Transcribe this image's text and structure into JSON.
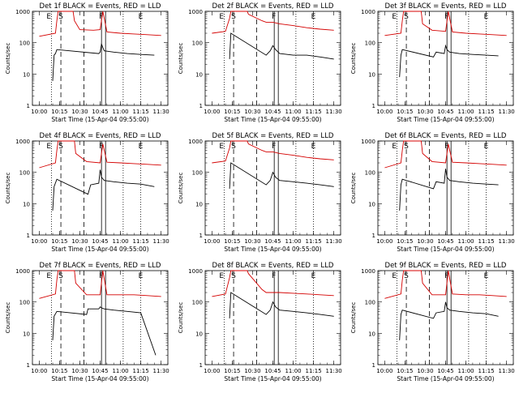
{
  "chart_data": [
    {
      "type": "line",
      "title": "Det 1f BLACK = Events, RED = LLD",
      "xlabel": "Start Time (15-Apr-04 09:55:00)",
      "ylabel": "Counts/sec",
      "x_ticks": [
        "10:00",
        "10:15",
        "10:30",
        "10:45",
        "11:00",
        "11:15",
        "11:30"
      ],
      "y_scale": "log",
      "ylim": [
        1,
        1000
      ],
      "y_ticks": [
        "1",
        "10",
        "100",
        "1000"
      ],
      "markers": [
        "E",
        "S",
        "F",
        "E"
      ],
      "series": [
        {
          "name": "RED",
          "color": "#d40000",
          "x": [
            "10:00",
            "10:12",
            "10:13",
            "10:14",
            "10:25",
            "10:26",
            "10:30",
            "10:40",
            "10:45",
            "10:47",
            "10:50",
            "11:00",
            "11:10",
            "11:20",
            "11:30"
          ],
          "y": [
            160,
            200,
            500,
            1000,
            1000,
            500,
            260,
            250,
            260,
            1000,
            220,
            200,
            190,
            180,
            170
          ]
        },
        {
          "name": "BLACK",
          "color": "#000000",
          "x": [
            "10:10",
            "10:11",
            "10:12",
            "10:13",
            "10:44",
            "10:45",
            "10:46",
            "10:47",
            "10:48",
            "10:55",
            "11:05",
            "11:15",
            "11:25"
          ],
          "y": [
            6,
            40,
            45,
            60,
            45,
            50,
            90,
            70,
            55,
            50,
            45,
            42,
            40
          ]
        }
      ]
    },
    {
      "type": "line",
      "title": "Det 2f BLACK = Events, RED = LLD",
      "xlabel": "Start Time (15-Apr-04 09:55:00)",
      "ylabel": "Counts/sec",
      "x_ticks": [
        "10:00",
        "10:15",
        "10:30",
        "10:45",
        "11:00",
        "11:15",
        "11:30"
      ],
      "y_scale": "log",
      "ylim": [
        1,
        1000
      ],
      "y_ticks": [
        "1",
        "10",
        "100",
        "1000"
      ],
      "markers": [
        "E",
        "S",
        "F",
        "E"
      ],
      "series": [
        {
          "name": "RED",
          "color": "#d40000",
          "x": [
            "10:00",
            "10:10",
            "10:13",
            "10:14",
            "10:26",
            "10:27",
            "10:37",
            "10:40",
            "10:45",
            "10:50",
            "11:00",
            "11:10",
            "11:20",
            "11:30"
          ],
          "y": [
            200,
            230,
            600,
            1000,
            1000,
            800,
            500,
            450,
            450,
            400,
            350,
            300,
            270,
            250
          ]
        },
        {
          "name": "BLACK",
          "color": "#000000",
          "x": [
            "10:13",
            "10:14",
            "10:40",
            "10:43",
            "10:45",
            "10:47",
            "10:50",
            "11:00",
            "11:10",
            "11:20",
            "11:30"
          ],
          "y": [
            30,
            200,
            40,
            55,
            80,
            60,
            45,
            40,
            40,
            35,
            30
          ]
        }
      ]
    },
    {
      "type": "line",
      "title": "Det 3f BLACK = Events, RED = LLD",
      "xlabel": "Start Time (15-Apr-04 09:55:00)",
      "ylabel": "Counts/sec",
      "x_ticks": [
        "10:00",
        "10:15",
        "10:30",
        "10:45",
        "11:00",
        "11:15",
        "11:30"
      ],
      "y_scale": "log",
      "ylim": [
        1,
        1000
      ],
      "y_ticks": [
        "1",
        "10",
        "100",
        "1000"
      ],
      "markers": [
        "E",
        "S",
        "F",
        "E"
      ],
      "series": [
        {
          "name": "RED",
          "color": "#d40000",
          "x": [
            "10:00",
            "10:12",
            "10:13",
            "10:14",
            "10:27",
            "10:28",
            "10:35",
            "10:45",
            "10:47",
            "10:50",
            "11:00",
            "11:10",
            "11:20",
            "11:30"
          ],
          "y": [
            170,
            200,
            500,
            1000,
            1000,
            400,
            250,
            230,
            1000,
            220,
            200,
            190,
            180,
            170
          ]
        },
        {
          "name": "BLACK",
          "color": "#000000",
          "x": [
            "10:11",
            "10:12",
            "10:13",
            "10:36",
            "10:38",
            "10:44",
            "10:45",
            "10:46",
            "10:48",
            "10:55",
            "11:05",
            "11:15",
            "11:24"
          ],
          "y": [
            8,
            40,
            60,
            35,
            50,
            45,
            80,
            60,
            50,
            45,
            42,
            40,
            38
          ]
        }
      ]
    },
    {
      "type": "line",
      "title": "Det 4f BLACK = Events, RED = LLD",
      "xlabel": "Start Time (15-Apr-04 09:55:00)",
      "ylabel": "Counts/sec",
      "x_ticks": [
        "10:00",
        "10:15",
        "10:30",
        "10:45",
        "11:00",
        "11:15",
        "11:30"
      ],
      "y_scale": "log",
      "ylim": [
        1,
        1000
      ],
      "y_ticks": [
        "1",
        "10",
        "100",
        "1000"
      ],
      "markers": [
        "E",
        "S",
        "F",
        "E"
      ],
      "series": [
        {
          "name": "RED",
          "color": "#d40000",
          "x": [
            "10:00",
            "10:12",
            "10:13",
            "10:14",
            "10:26",
            "10:27",
            "10:35",
            "10:45",
            "10:47",
            "10:50",
            "11:00",
            "11:10",
            "11:20",
            "11:30"
          ],
          "y": [
            140,
            200,
            500,
            1000,
            1000,
            400,
            220,
            200,
            800,
            210,
            200,
            190,
            180,
            170
          ]
        },
        {
          "name": "BLACK",
          "color": "#000000",
          "x": [
            "10:10",
            "10:11",
            "10:13",
            "10:36",
            "10:38",
            "10:44",
            "10:45",
            "10:46",
            "10:48",
            "10:55",
            "11:05",
            "11:15",
            "11:25"
          ],
          "y": [
            6,
            35,
            60,
            20,
            40,
            45,
            120,
            70,
            55,
            50,
            45,
            42,
            35
          ]
        }
      ]
    },
    {
      "type": "line",
      "title": "Det 5f BLACK = Events, RED = LLD",
      "xlabel": "Start Time (15-Apr-04 09:55:00)",
      "ylabel": "Counts/sec",
      "x_ticks": [
        "10:00",
        "10:15",
        "10:30",
        "10:45",
        "11:00",
        "11:15",
        "11:30"
      ],
      "y_scale": "log",
      "ylim": [
        1,
        1000
      ],
      "y_ticks": [
        "1",
        "10",
        "100",
        "1000"
      ],
      "markers": [
        "E",
        "S",
        "F",
        "E"
      ],
      "series": [
        {
          "name": "RED",
          "color": "#d40000",
          "x": [
            "10:00",
            "10:10",
            "10:13",
            "10:14",
            "10:26",
            "10:27",
            "10:37",
            "10:40",
            "10:45",
            "10:50",
            "11:00",
            "11:10",
            "11:20",
            "11:30"
          ],
          "y": [
            200,
            230,
            600,
            1000,
            1000,
            800,
            500,
            450,
            450,
            400,
            350,
            300,
            270,
            250
          ]
        },
        {
          "name": "BLACK",
          "color": "#000000",
          "x": [
            "10:13",
            "10:14",
            "10:40",
            "10:43",
            "10:45",
            "10:47",
            "10:50",
            "11:00",
            "11:10",
            "11:20",
            "11:30"
          ],
          "y": [
            30,
            200,
            40,
            55,
            100,
            70,
            55,
            50,
            45,
            40,
            35
          ]
        }
      ]
    },
    {
      "type": "line",
      "title": "Det 6f BLACK = Events, RED = LLD",
      "xlabel": "Start Time (15-Apr-04 09:55:00)",
      "ylabel": "Counts/sec",
      "x_ticks": [
        "10:00",
        "10:15",
        "10:30",
        "10:45",
        "11:00",
        "11:15",
        "11:30"
      ],
      "y_scale": "log",
      "ylim": [
        1,
        1000
      ],
      "y_ticks": [
        "1",
        "10",
        "100",
        "1000"
      ],
      "markers": [
        "E",
        "S",
        "F",
        "E"
      ],
      "series": [
        {
          "name": "RED",
          "color": "#d40000",
          "x": [
            "10:00",
            "10:12",
            "10:13",
            "10:14",
            "10:27",
            "10:28",
            "10:35",
            "10:45",
            "10:47",
            "10:50",
            "11:00",
            "11:10",
            "11:20",
            "11:30"
          ],
          "y": [
            140,
            200,
            500,
            1000,
            1000,
            400,
            220,
            200,
            800,
            210,
            200,
            190,
            180,
            170
          ]
        },
        {
          "name": "BLACK",
          "color": "#000000",
          "x": [
            "10:11",
            "10:12",
            "10:13",
            "10:36",
            "10:38",
            "10:44",
            "10:45",
            "10:46",
            "10:48",
            "10:55",
            "11:05",
            "11:15",
            "11:24"
          ],
          "y": [
            6,
            40,
            60,
            30,
            50,
            45,
            130,
            70,
            55,
            50,
            45,
            42,
            40
          ]
        }
      ]
    },
    {
      "type": "line",
      "title": "Det 7f BLACK = Events, RED = LLD",
      "xlabel": "Start Time (15-Apr-04 09:55:00)",
      "ylabel": "Counts/sec",
      "x_ticks": [
        "10:00",
        "10:15",
        "10:30",
        "10:45",
        "11:00",
        "11:15",
        "11:30"
      ],
      "y_scale": "log",
      "ylim": [
        1,
        1000
      ],
      "y_ticks": [
        "1",
        "10",
        "100",
        "1000"
      ],
      "markers": [
        "E",
        "S",
        "F",
        "E"
      ],
      "series": [
        {
          "name": "RED",
          "color": "#d40000",
          "x": [
            "10:00",
            "10:12",
            "10:13",
            "10:14",
            "10:26",
            "10:27",
            "10:35",
            "10:45",
            "10:47",
            "10:50",
            "11:00",
            "11:10",
            "11:20",
            "11:30"
          ],
          "y": [
            130,
            180,
            500,
            1000,
            1000,
            400,
            170,
            170,
            1000,
            170,
            170,
            170,
            160,
            150
          ]
        },
        {
          "name": "BLACK",
          "color": "#000000",
          "x": [
            "10:10",
            "10:11",
            "10:13",
            "10:35",
            "10:36",
            "10:44",
            "10:45",
            "10:46",
            "10:48",
            "10:55",
            "11:05",
            "11:15",
            "11:26"
          ],
          "y": [
            6,
            35,
            50,
            40,
            60,
            60,
            70,
            65,
            60,
            55,
            50,
            45,
            2
          ]
        }
      ]
    },
    {
      "type": "line",
      "title": "Det 8f BLACK = Events, RED = LLD",
      "xlabel": "Start Time (15-Apr-04 09:55:00)",
      "ylabel": "Counts/sec",
      "x_ticks": [
        "10:00",
        "10:15",
        "10:30",
        "10:45",
        "11:00",
        "11:15",
        "11:30"
      ],
      "y_scale": "log",
      "ylim": [
        1,
        1000
      ],
      "y_ticks": [
        "1",
        "10",
        "100",
        "1000"
      ],
      "markers": [
        "E",
        "S",
        "F",
        "E"
      ],
      "series": [
        {
          "name": "RED",
          "color": "#d40000",
          "x": [
            "10:00",
            "10:10",
            "10:13",
            "10:14",
            "10:26",
            "10:27",
            "10:37",
            "10:40",
            "10:45",
            "10:50",
            "11:00",
            "11:10",
            "11:20",
            "11:30"
          ],
          "y": [
            150,
            180,
            600,
            1000,
            1000,
            800,
            250,
            200,
            200,
            200,
            190,
            180,
            170,
            160
          ]
        },
        {
          "name": "BLACK",
          "color": "#000000",
          "x": [
            "10:13",
            "10:14",
            "10:40",
            "10:43",
            "10:45",
            "10:47",
            "10:50",
            "11:00",
            "11:10",
            "11:20",
            "11:30"
          ],
          "y": [
            30,
            200,
            40,
            55,
            100,
            70,
            55,
            50,
            45,
            40,
            35
          ]
        }
      ]
    },
    {
      "type": "line",
      "title": "Det 9f BLACK = Events, RED = LLD",
      "xlabel": "Start Time (15-Apr-04 09:55:00)",
      "ylabel": "Counts/sec",
      "x_ticks": [
        "10:00",
        "10:15",
        "10:30",
        "10:45",
        "11:00",
        "11:15",
        "11:30"
      ],
      "y_scale": "log",
      "ylim": [
        1,
        1000
      ],
      "y_ticks": [
        "1",
        "10",
        "100",
        "1000"
      ],
      "markers": [
        "E",
        "S",
        "F",
        "E"
      ],
      "series": [
        {
          "name": "RED",
          "color": "#d40000",
          "x": [
            "10:00",
            "10:12",
            "10:13",
            "10:14",
            "10:27",
            "10:28",
            "10:35",
            "10:45",
            "10:47",
            "10:50",
            "11:00",
            "11:10",
            "11:20",
            "11:30"
          ],
          "y": [
            130,
            180,
            500,
            1000,
            1000,
            400,
            170,
            170,
            1000,
            180,
            170,
            170,
            160,
            150
          ]
        },
        {
          "name": "BLACK",
          "color": "#000000",
          "x": [
            "10:11",
            "10:12",
            "10:13",
            "10:36",
            "10:38",
            "10:44",
            "10:45",
            "10:46",
            "10:48",
            "10:55",
            "11:05",
            "11:15",
            "11:24"
          ],
          "y": [
            6,
            40,
            55,
            30,
            45,
            50,
            100,
            65,
            55,
            50,
            45,
            42,
            35
          ]
        }
      ]
    }
  ]
}
